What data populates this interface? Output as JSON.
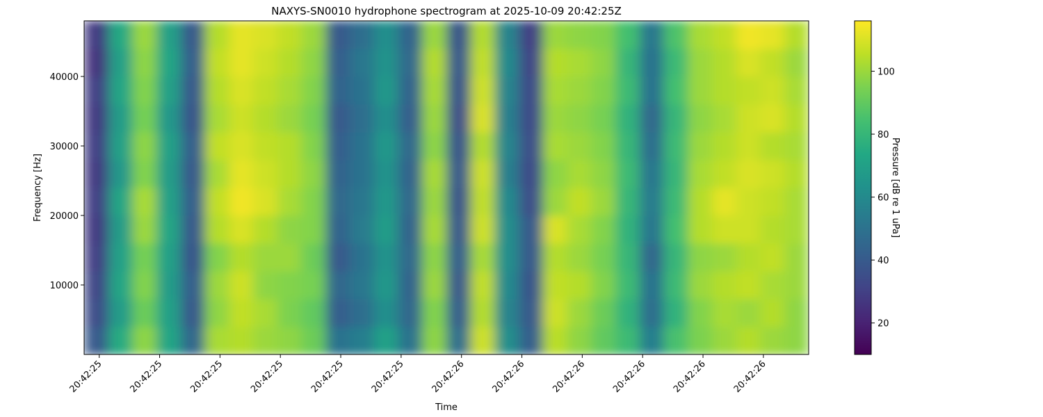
{
  "chart_data": {
    "type": "heatmap",
    "title": "NAXYS-SN0010 hydrophone spectrogram at 2025-10-09 20:42:25Z",
    "xlabel": "Time",
    "ylabel": "Frequency [Hz]",
    "colorbar_label": "Pressure [dB re 1 uPa]",
    "colormap": "viridis",
    "clim": [
      10,
      116
    ],
    "cticks": [
      20,
      40,
      60,
      80,
      100
    ],
    "xlim": [
      25.375,
      26.575
    ],
    "xticks": [
      {
        "value": 25.4,
        "label": "20:42:25"
      },
      {
        "value": 25.5,
        "label": "20:42:25"
      },
      {
        "value": 25.6,
        "label": "20:42:25"
      },
      {
        "value": 25.7,
        "label": "20:42:25"
      },
      {
        "value": 25.8,
        "label": "20:42:25"
      },
      {
        "value": 25.9,
        "label": "20:42:25"
      },
      {
        "value": 26.0,
        "label": "20:42:26"
      },
      {
        "value": 26.1,
        "label": "20:42:26"
      },
      {
        "value": 26.2,
        "label": "20:42:26"
      },
      {
        "value": 26.3,
        "label": "20:42:26"
      },
      {
        "value": 26.4,
        "label": "20:42:26"
      },
      {
        "value": 26.5,
        "label": "20:42:26"
      }
    ],
    "ylim": [
      0,
      48000
    ],
    "yticks": [
      10000,
      20000,
      30000,
      40000
    ],
    "xbins": [
      25.375,
      25.415,
      25.455,
      25.495,
      25.535,
      25.575,
      25.615,
      25.655,
      25.695,
      25.735,
      25.775,
      25.815,
      25.855,
      25.895,
      25.935,
      25.975,
      26.015,
      26.055,
      26.095,
      26.135,
      26.175,
      26.215,
      26.255,
      26.295,
      26.335,
      26.375,
      26.415,
      26.455,
      26.495,
      26.535,
      26.575
    ],
    "ybins": [
      0,
      4000,
      8000,
      12000,
      16000,
      20000,
      24000,
      28000,
      32000,
      36000,
      40000,
      44000,
      48000
    ],
    "z": [
      [
        40,
        75,
        98,
        72,
        45,
        102,
        104,
        100,
        98,
        92,
        50,
        55,
        70,
        50,
        98,
        48,
        108,
        62,
        42,
        105,
        98,
        90,
        82,
        55,
        85,
        95,
        100,
        104,
        100,
        98
      ],
      [
        35,
        68,
        92,
        70,
        40,
        98,
        106,
        102,
        95,
        90,
        42,
        48,
        62,
        45,
        96,
        42,
        104,
        58,
        40,
        108,
        100,
        92,
        78,
        48,
        78,
        96,
        102,
        100,
        104,
        98
      ],
      [
        32,
        72,
        96,
        68,
        42,
        100,
        108,
        98,
        96,
        94,
        45,
        52,
        66,
        44,
        100,
        40,
        106,
        60,
        38,
        106,
        104,
        96,
        82,
        50,
        82,
        100,
        104,
        106,
        102,
        100
      ],
      [
        30,
        70,
        94,
        70,
        38,
        96,
        104,
        100,
        100,
        92,
        40,
        50,
        64,
        46,
        98,
        42,
        102,
        62,
        40,
        104,
        100,
        94,
        80,
        45,
        80,
        98,
        100,
        104,
        106,
        100
      ],
      [
        28,
        68,
        100,
        72,
        40,
        104,
        110,
        104,
        98,
        96,
        44,
        54,
        68,
        44,
        102,
        40,
        108,
        62,
        40,
        110,
        102,
        96,
        78,
        52,
        84,
        104,
        108,
        108,
        104,
        102
      ],
      [
        30,
        72,
        102,
        70,
        42,
        106,
        114,
        110,
        102,
        96,
        46,
        52,
        66,
        46,
        100,
        38,
        106,
        60,
        36,
        100,
        106,
        100,
        80,
        54,
        82,
        104,
        112,
        108,
        106,
        102
      ],
      [
        28,
        66,
        96,
        68,
        40,
        102,
        112,
        108,
        104,
        98,
        44,
        50,
        64,
        44,
        102,
        40,
        108,
        56,
        34,
        98,
        102,
        98,
        82,
        52,
        80,
        102,
        106,
        110,
        108,
        104
      ],
      [
        30,
        70,
        98,
        70,
        42,
        106,
        110,
        106,
        104,
        96,
        42,
        50,
        66,
        46,
        98,
        38,
        104,
        58,
        36,
        102,
        100,
        96,
        80,
        48,
        82,
        100,
        104,
        108,
        104,
        102
      ],
      [
        28,
        68,
        94,
        66,
        38,
        102,
        108,
        104,
        100,
        94,
        40,
        48,
        62,
        42,
        100,
        36,
        110,
        56,
        34,
        100,
        98,
        94,
        78,
        46,
        80,
        98,
        102,
        108,
        110,
        104
      ],
      [
        30,
        72,
        96,
        70,
        40,
        104,
        110,
        106,
        102,
        96,
        44,
        50,
        66,
        44,
        102,
        38,
        108,
        58,
        34,
        102,
        100,
        96,
        82,
        50,
        84,
        100,
        104,
        106,
        108,
        102
      ],
      [
        26,
        70,
        98,
        72,
        42,
        106,
        112,
        108,
        104,
        98,
        42,
        52,
        64,
        46,
        104,
        40,
        106,
        60,
        32,
        104,
        102,
        98,
        80,
        50,
        82,
        100,
        104,
        110,
        106,
        100
      ],
      [
        28,
        74,
        100,
        70,
        40,
        104,
        112,
        110,
        106,
        100,
        40,
        48,
        62,
        44,
        100,
        38,
        104,
        58,
        30,
        100,
        98,
        96,
        84,
        52,
        86,
        102,
        106,
        114,
        112,
        104
      ]
    ]
  }
}
